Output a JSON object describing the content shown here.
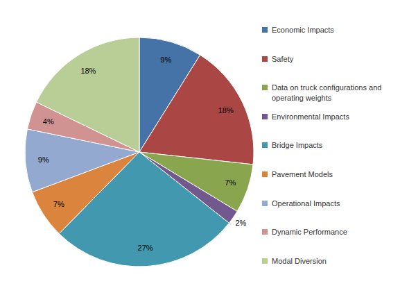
{
  "chart_data": {
    "type": "pie",
    "categories": [
      "Economic Impacts",
      "Safety",
      "Data on truck configurations and operating weights",
      "Environmental Impacts",
      "Bridge Impacts",
      "Pavement Models",
      "Operational Impacts",
      "Dynamic Performance",
      "Modal Diversion"
    ],
    "values": [
      9,
      18,
      7,
      2,
      27,
      7,
      9,
      4,
      18
    ],
    "value_labels": [
      "9%",
      "18%",
      "7%",
      "2%",
      "27%",
      "7%",
      "9%",
      "4%",
      "18%"
    ],
    "colors": [
      "#4572A7",
      "#AA4643",
      "#89A54E",
      "#71588F",
      "#4198AF",
      "#DB843D",
      "#93A9CF",
      "#D19392",
      "#B9CD96"
    ],
    "data_labels": true,
    "legend": "right"
  }
}
